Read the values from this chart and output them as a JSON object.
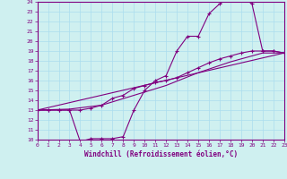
{
  "xlabel": "Windchill (Refroidissement éolien,°C)",
  "bg_color": "#cff0f0",
  "line_color": "#800080",
  "grid_color": "#aaddee",
  "xlim": [
    0,
    23
  ],
  "ylim": [
    10,
    24
  ],
  "xticks": [
    0,
    1,
    2,
    3,
    4,
    5,
    6,
    7,
    8,
    9,
    10,
    11,
    12,
    13,
    14,
    15,
    16,
    17,
    18,
    19,
    20,
    21,
    22,
    23
  ],
  "yticks": [
    10,
    11,
    12,
    13,
    14,
    15,
    16,
    17,
    18,
    19,
    20,
    21,
    22,
    23,
    24
  ],
  "line1_x": [
    0,
    1,
    2,
    3,
    4,
    5,
    6,
    7,
    8,
    9,
    10,
    11,
    12,
    13,
    14,
    15,
    16,
    17,
    18,
    19,
    20,
    21,
    22,
    23
  ],
  "line1_y": [
    13,
    13,
    13,
    13,
    9.8,
    10.1,
    10.1,
    10.1,
    10.3,
    13,
    15,
    16,
    16.5,
    19,
    20.5,
    20.5,
    22.8,
    23.8,
    24.5,
    24.5,
    23.8,
    19.0,
    19.0,
    18.8
  ],
  "line2_x": [
    0,
    1,
    2,
    3,
    4,
    5,
    6,
    7,
    8,
    9,
    10,
    11,
    12,
    13,
    14,
    15,
    16,
    17,
    18,
    19,
    20,
    21,
    22,
    23
  ],
  "line2_y": [
    13,
    13,
    13,
    13,
    13,
    13.2,
    13.5,
    14.2,
    14.5,
    15.2,
    15.5,
    15.8,
    16.0,
    16.3,
    16.8,
    17.3,
    17.8,
    18.2,
    18.5,
    18.8,
    19.0,
    19.0,
    19.0,
    18.8
  ],
  "line3_x": [
    0,
    23
  ],
  "line3_y": [
    13,
    18.8
  ],
  "line4_x": [
    0,
    3,
    6,
    9,
    12,
    15,
    18,
    21,
    23
  ],
  "line4_y": [
    13,
    13.1,
    13.5,
    14.5,
    15.5,
    16.8,
    17.9,
    18.8,
    18.8
  ]
}
